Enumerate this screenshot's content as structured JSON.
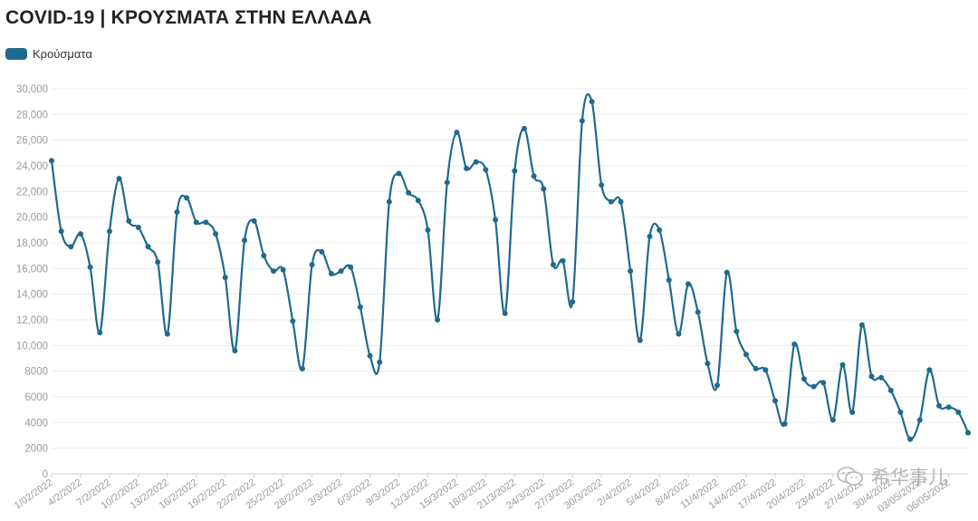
{
  "colors": {
    "series": "#1f6a8d",
    "grid": "#ececec",
    "tick": "#9a9a9a"
  },
  "watermark": {
    "text": "希华事儿",
    "icon": "wechat-icon"
  },
  "chart_data": {
    "type": "line",
    "title": "COVID-19 | ΚΡΟΥΣΜΑΤΑ ΣΤΗΝ ΕΛΛΑΔΑ",
    "legend_position": "top-left",
    "grid": true,
    "ylim": [
      0,
      30000
    ],
    "y_ticks": [
      0,
      2000,
      4000,
      6000,
      8000,
      10000,
      12000,
      14000,
      16000,
      18000,
      20000,
      22000,
      24000,
      26000,
      28000,
      30000
    ],
    "y_tick_labels": [
      "0",
      "2000",
      "4000",
      "6000",
      "8000",
      "10,000",
      "12,000",
      "14,000",
      "16,000",
      "18,000",
      "20,000",
      "22,000",
      "24,000",
      "26,000",
      "28,000",
      "30,000"
    ],
    "x_tick_labels": [
      "1/02/2022",
      "4/2/2022",
      "7/2/2022",
      "10/2/2022",
      "13/2/2022",
      "16/2/2022",
      "19/2/2022",
      "22/2/2022",
      "25/2/2022",
      "28/2/2022",
      "3/3/2022",
      "6/3/2022",
      "9/3/2022",
      "12/3/2022",
      "15/3/2022",
      "18/3/2022",
      "21/3/2022",
      "24/3/2022",
      "27/3/2022",
      "30/3/2022",
      "2/4/2022",
      "5/4/2022",
      "8/4/2022",
      "11/4/2022",
      "14/4/2022",
      "17/4/2022",
      "20/4/2022",
      "23/4/2022",
      "27/4/2022",
      "30/4/2022",
      "03/05/2022",
      "06/05/2022"
    ],
    "series": [
      {
        "name": "Κρούσματα",
        "values": [
          24400,
          18900,
          17700,
          18700,
          16100,
          11000,
          18900,
          23000,
          19700,
          19200,
          17700,
          16500,
          10900,
          20400,
          21500,
          19600,
          19600,
          18700,
          15300,
          9600,
          18200,
          19700,
          17000,
          15800,
          15900,
          11900,
          8200,
          16300,
          17300,
          15600,
          15800,
          16100,
          13000,
          9200,
          8700,
          21200,
          23400,
          21900,
          21300,
          19000,
          12000,
          22700,
          26600,
          23800,
          24300,
          23700,
          19800,
          12500,
          23600,
          26900,
          23200,
          22200,
          16300,
          16600,
          13400,
          27500,
          29000,
          22500,
          21200,
          21200,
          15800,
          10400,
          18500,
          19000,
          15100,
          10900,
          14800,
          12600,
          8600,
          6900,
          15700,
          11100,
          9300,
          8200,
          8100,
          5700,
          3900,
          10100,
          7400,
          6800,
          7100,
          4200,
          8500,
          4800,
          11600,
          7600,
          7500,
          6500,
          4800,
          2700,
          4200,
          8100,
          5300,
          5200,
          4800,
          3200
        ]
      }
    ]
  }
}
